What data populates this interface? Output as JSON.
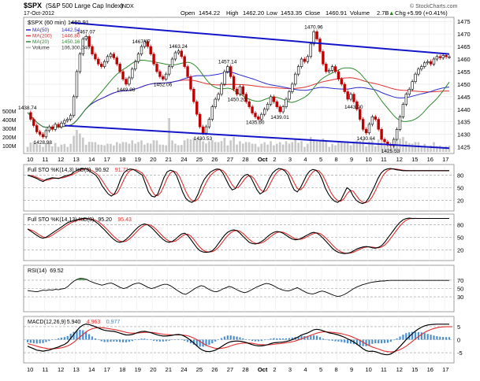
{
  "header": {
    "symbol": "$SPX",
    "company": "(S&P 500 Large Cap Index)",
    "exchange": "INDX",
    "date": "17-Oct-2012",
    "open_label": "Open",
    "open": "1454.22",
    "high_label": "High",
    "high": "1462.20",
    "low_label": "Low",
    "low": "1453.35",
    "close_label": "Close",
    "close": "1460.91",
    "volume_label": "Volume",
    "volume": "2.7B",
    "chg_label": "Chg",
    "chg": "+5.99 (+0.41%)",
    "chg_arrow": "▲",
    "credit": "© StockCharts.com"
  },
  "chart_data": [
    {
      "type": "line",
      "title": "$SPX (60 min) 1460.91",
      "legend": [
        {
          "label": "MA(50)",
          "value": "1442.54",
          "color": "#2b2bd0"
        },
        {
          "label": "MA(200)",
          "value": "1446.80",
          "color": "#e03030"
        },
        {
          "label": "MA(20)",
          "value": "1450.16",
          "color": "#2e8b2e"
        },
        {
          "label": "Volume",
          "value": "106,300,040",
          "color": "#bbbbbb"
        }
      ],
      "ylim": [
        1423,
        1476
      ],
      "yticks": [
        1425,
        1430,
        1435,
        1440,
        1445,
        1450,
        1455,
        1460,
        1465,
        1470,
        1475
      ],
      "volume_ticks": [
        "500M",
        "400M",
        "300M",
        "200M",
        "100M"
      ],
      "x": [
        0,
        1,
        2,
        3,
        4,
        5,
        6,
        7,
        8,
        9,
        10,
        11,
        12,
        13,
        14,
        15,
        16,
        17,
        18,
        19,
        20,
        21,
        22,
        23,
        24,
        25,
        26,
        27,
        28,
        29,
        30,
        31,
        32,
        33,
        34,
        35,
        36,
        37,
        38,
        39,
        40,
        41,
        42,
        43,
        44,
        45,
        46,
        47,
        48,
        49,
        50,
        51,
        52,
        53,
        54,
        55,
        56,
        57,
        58,
        59,
        60,
        61,
        62,
        63,
        64,
        65,
        66,
        67,
        68,
        69,
        70,
        71,
        72,
        73,
        74,
        75,
        76,
        77,
        78,
        79,
        80,
        81,
        82,
        83,
        84,
        85,
        86,
        87,
        88,
        89,
        90,
        91,
        92,
        93,
        94,
        95,
        96,
        97,
        98,
        99,
        100,
        101,
        102,
        103,
        104,
        105,
        106,
        107,
        108,
        109,
        110,
        111,
        112,
        113,
        114,
        115,
        116,
        117,
        118,
        119,
        120,
        121,
        122,
        123,
        124,
        125,
        126,
        127,
        128,
        129,
        130,
        131,
        132,
        133,
        134,
        135,
        136,
        137
      ],
      "price": [
        1438.7,
        1436.0,
        1433.5,
        1431.0,
        1430.0,
        1429.0,
        1431.5,
        1433.0,
        1432.0,
        1434.0,
        1433.0,
        1434.5,
        1435.5,
        1436.0,
        1437.5,
        1445.0,
        1455.0,
        1462.0,
        1468.0,
        1469.0,
        1465.0,
        1462.0,
        1460.0,
        1458.0,
        1457.0,
        1459.0,
        1461.0,
        1462.0,
        1460.5,
        1458.0,
        1455.0,
        1452.0,
        1450.0,
        1452.5,
        1456.0,
        1459.0,
        1462.0,
        1465.0,
        1467.0,
        1465.0,
        1462.0,
        1458.0,
        1455.0,
        1453.0,
        1452.0,
        1454.0,
        1457.0,
        1460.0,
        1462.5,
        1463.2,
        1461.0,
        1457.0,
        1453.0,
        1448.0,
        1443.0,
        1438.0,
        1433.0,
        1430.5,
        1433.0,
        1436.0,
        1441.0,
        1444.0,
        1446.0,
        1450.0,
        1455.0,
        1457.0,
        1453.0,
        1448.0,
        1446.0,
        1449.0,
        1446.0,
        1443.0,
        1441.0,
        1438.5,
        1437.0,
        1436.0,
        1438.0,
        1440.0,
        1442.0,
        1445.0,
        1443.0,
        1441.0,
        1439.0,
        1441.0,
        1444.0,
        1447.0,
        1450.0,
        1454.0,
        1457.0,
        1460.0,
        1459.0,
        1461.0,
        1466.0,
        1470.9,
        1468.0,
        1463.0,
        1458.0,
        1455.0,
        1455.5,
        1457.0,
        1455.0,
        1452.0,
        1450.0,
        1447.0,
        1444.0,
        1446.0,
        1443.0,
        1440.0,
        1436.0,
        1432.0,
        1430.6,
        1434.0,
        1437.0,
        1436.0,
        1432.0,
        1428.0,
        1427.0,
        1426.0,
        1425.5,
        1428.0,
        1432.0,
        1437.0,
        1442.0,
        1446.0,
        1448.0,
        1451.0,
        1454.0,
        1456.0,
        1457.0,
        1458.5,
        1459.0,
        1458.0,
        1460.0,
        1461.0,
        1460.5,
        1461.5,
        1460.9,
        1460.9
      ],
      "annotations": [
        {
          "i": 0,
          "text": "1438.74"
        },
        {
          "i": 5,
          "text": "1428.98"
        },
        {
          "i": 19,
          "text": "1467.07"
        },
        {
          "i": 32,
          "text": "1449.98"
        },
        {
          "i": 37,
          "text": "1467.07"
        },
        {
          "i": 44,
          "text": "1452.06"
        },
        {
          "i": 49,
          "text": "1463.24"
        },
        {
          "i": 57,
          "text": "1430.53"
        },
        {
          "i": 65,
          "text": "1457.14"
        },
        {
          "i": 68,
          "text": "1450.20"
        },
        {
          "i": 74,
          "text": "1435.60"
        },
        {
          "i": 82,
          "text": "1439.01"
        },
        {
          "i": 93,
          "text": "1470.96"
        },
        {
          "i": 106,
          "text": "1443.90"
        },
        {
          "i": 110,
          "text": "1430.64"
        },
        {
          "i": 118,
          "text": "1425.53"
        }
      ],
      "x_tick_labels": [
        "10",
        "11",
        "12",
        "13",
        "14",
        "17",
        "18",
        "19",
        "20",
        "21",
        "24",
        "25",
        "26",
        "27",
        "28",
        "Oct",
        "2",
        "3",
        "4",
        "5",
        "8",
        "9",
        "10",
        "11",
        "12",
        "15",
        "16",
        "17"
      ],
      "trendline_upper": [
        [
          14,
          1474.5
        ],
        [
          137,
          1462.0
        ]
      ],
      "trendline_lower": [
        [
          12,
          1433.5
        ],
        [
          137,
          1424.5
        ]
      ]
    },
    {
      "type": "line",
      "title": "Full STO %K(14,3) %D(3) 90.92, 91.71",
      "legend": [
        {
          "label": "Full STO %K(14,3) %D(3)",
          "value": "90.92",
          "color": "#000000"
        },
        {
          "label": "",
          "value": "91.71",
          "color": "#e03030"
        }
      ],
      "ylim": [
        0,
        100
      ],
      "yticks": [
        20,
        50,
        80
      ],
      "k": [
        80,
        78,
        75,
        72,
        68,
        65,
        70,
        72,
        74,
        73,
        72,
        75,
        78,
        80,
        82,
        88,
        92,
        95,
        96,
        95,
        90,
        85,
        80,
        70,
        55,
        45,
        35,
        30,
        35,
        50,
        70,
        85,
        92,
        95,
        94,
        90,
        85,
        80,
        60,
        40,
        30,
        28,
        35,
        55,
        75,
        88,
        92,
        90,
        80,
        60,
        40,
        25,
        18,
        15,
        20,
        35,
        55,
        70,
        80,
        88,
        92,
        95,
        94,
        85,
        70,
        55,
        45,
        48,
        60,
        72,
        80,
        82,
        75,
        60,
        45,
        35,
        40,
        55,
        72,
        85,
        92,
        96,
        95,
        90,
        80,
        60,
        45,
        40,
        50,
        65,
        80,
        90,
        94,
        92,
        85,
        70,
        50,
        35,
        25,
        18,
        15,
        20,
        35,
        50,
        45,
        30,
        20,
        15,
        12,
        15,
        25,
        40,
        55,
        72,
        85,
        92,
        95,
        96,
        95,
        93,
        92,
        91,
        90.9,
        90.9,
        90.9,
        90.9,
        90.9,
        90.9,
        90.9,
        90.9,
        90.9,
        90.9,
        90.9,
        90.9,
        90.9,
        90.9,
        90.9
      ]
    },
    {
      "type": "line",
      "title": "Full STO %K(14,13) %D(3) 95.20, 95.43",
      "legend": [
        {
          "label": "Full STO %K(14,13) %D(3)",
          "value": "95.20",
          "color": "#000000"
        },
        {
          "label": "",
          "value": "95.43",
          "color": "#e03030"
        }
      ],
      "ylim": [
        0,
        100
      ],
      "yticks": [
        20,
        50,
        80
      ],
      "k": [
        70,
        65,
        60,
        55,
        50,
        48,
        50,
        55,
        60,
        65,
        70,
        75,
        80,
        85,
        88,
        90,
        92,
        94,
        95,
        95,
        94,
        92,
        88,
        82,
        75,
        68,
        60,
        52,
        45,
        40,
        38,
        40,
        45,
        52,
        60,
        68,
        75,
        80,
        82,
        80,
        75,
        68,
        60,
        52,
        45,
        40,
        38,
        40,
        45,
        52,
        58,
        60,
        55,
        45,
        35,
        25,
        18,
        15,
        14,
        15,
        18,
        25,
        35,
        45,
        55,
        62,
        66,
        68,
        66,
        60,
        52,
        45,
        38,
        35,
        34,
        36,
        40,
        45,
        52,
        58,
        62,
        64,
        63,
        60,
        55,
        50,
        46,
        44,
        45,
        48,
        52,
        56,
        60,
        62,
        60,
        55,
        48,
        40,
        32,
        24,
        18,
        14,
        12,
        11,
        12,
        14,
        18,
        22,
        25,
        27,
        28,
        27,
        25,
        24,
        26,
        30,
        38,
        48,
        58,
        68,
        78,
        86,
        92,
        95,
        96,
        95,
        95.2,
        95.2,
        95.2,
        95.2,
        95.2,
        95.2,
        95.2,
        95.2,
        95.2,
        95.2,
        95.2,
        95.2
      ]
    },
    {
      "type": "line",
      "title": "RSI(14) 69.52",
      "legend": [
        {
          "label": "RSI(14)",
          "value": "69.52",
          "color": "#000000"
        }
      ],
      "ylim": [
        0,
        100
      ],
      "yticks": [
        30,
        50,
        70
      ],
      "values": [
        45,
        44,
        43,
        42,
        44,
        46,
        45,
        47,
        46,
        48,
        47,
        49,
        50,
        55,
        62,
        68,
        72,
        75,
        74,
        72,
        68,
        65,
        62,
        60,
        58,
        60,
        62,
        63,
        60,
        56,
        52,
        50,
        52,
        56,
        60,
        62,
        63,
        60,
        56,
        52,
        50,
        52,
        55,
        58,
        60,
        60,
        57,
        52,
        47,
        42,
        38,
        36,
        40,
        45,
        50,
        54,
        57,
        55,
        50,
        46,
        43,
        42,
        45,
        49,
        52,
        55,
        53,
        49,
        45,
        42,
        40,
        42,
        46,
        50,
        54,
        57,
        60,
        62,
        61,
        58,
        54,
        50,
        47,
        45,
        44,
        46,
        49,
        52,
        48,
        44,
        40,
        38,
        37,
        39,
        42,
        44,
        42,
        39,
        36,
        33,
        31,
        32,
        35,
        39,
        44,
        49,
        53,
        56,
        59,
        61,
        63,
        65,
        66,
        67,
        68,
        68,
        69,
        69.5,
        69.5,
        69.5,
        69.5,
        69.5,
        69.5,
        69.5,
        69.5,
        69.5,
        69.5,
        69.5,
        69.5,
        69.5,
        69.5,
        69.5,
        69.5,
        69.5,
        69.5,
        69.5,
        69.5
      ]
    },
    {
      "type": "line",
      "title": "MACD(12,26,9) 5.940, 4.963, 0.977",
      "legend": [
        {
          "label": "MACD(12,26,9)",
          "value": "5.940",
          "color": "#000000"
        },
        {
          "label": "",
          "value": "4.963",
          "color": "#e03030"
        },
        {
          "label": "",
          "value": "0.977",
          "color": "#3b86c8"
        }
      ],
      "ylim": [
        -8,
        8
      ],
      "yticks": [
        -5,
        0,
        5
      ],
      "macd": [
        -2.5,
        -3,
        -3.5,
        -4,
        -4.2,
        -4.4,
        -4.2,
        -4,
        -3.6,
        -3.2,
        -2.8,
        -2.3,
        -1.8,
        -1,
        0.5,
        2,
        3.5,
        4.8,
        5.6,
        6,
        5.8,
        5.4,
        5,
        4.5,
        4,
        3.6,
        3.4,
        3.3,
        3.2,
        2.9,
        2.5,
        2.1,
        1.8,
        1.8,
        2,
        2.4,
        2.8,
        3.1,
        3.2,
        3,
        2.7,
        2.3,
        1.9,
        1.6,
        1.4,
        1.4,
        1.5,
        1.7,
        1.9,
        2,
        1.8,
        1.3,
        0.6,
        -0.3,
        -1.3,
        -2.4,
        -3.4,
        -4.1,
        -4.5,
        -4.6,
        -4.4,
        -4,
        -3.4,
        -2.7,
        -1.9,
        -1.2,
        -0.8,
        -0.6,
        -0.5,
        -0.6,
        -0.8,
        -1.1,
        -1.5,
        -1.9,
        -2.2,
        -2.4,
        -2.4,
        -2.2,
        -1.9,
        -1.5,
        -1.2,
        -1.1,
        -1,
        -0.9,
        -0.7,
        -0.4,
        0,
        0.5,
        1.1,
        1.8,
        2.2,
        2.6,
        3.2,
        3.8,
        4,
        3.8,
        3.4,
        3,
        2.6,
        2.4,
        2.1,
        1.8,
        1.4,
        0.9,
        0.3,
        -0.2,
        -0.9,
        -1.7,
        -2.6,
        -3.5,
        -4.2,
        -4.5,
        -4.4,
        -4.6,
        -5,
        -5.4,
        -5.7,
        -5.8,
        -5.5,
        -4.8,
        -3.8,
        -2.6,
        -1.3,
        0,
        1.2,
        2.3,
        3.3,
        4.1,
        4.8,
        5.3,
        5.6,
        5.8,
        5.9,
        5.94,
        5.94,
        5.94,
        5.94,
        5.94
      ],
      "signal": [
        -1.5,
        -1.8,
        -2.1,
        -2.5,
        -2.8,
        -3.1,
        -3.3,
        -3.5,
        -3.5,
        -3.4,
        -3.3,
        -3.1,
        -2.8,
        -2.4,
        -1.8,
        -1,
        0,
        1,
        2,
        3,
        3.7,
        4.2,
        4.5,
        4.6,
        4.6,
        4.5,
        4.3,
        4.1,
        3.9,
        3.7,
        3.4,
        3.1,
        2.8,
        2.6,
        2.5,
        2.5,
        2.6,
        2.7,
        2.8,
        2.8,
        2.8,
        2.7,
        2.5,
        2.3,
        2.1,
        2,
        1.9,
        1.8,
        1.8,
        1.8,
        1.8,
        1.7,
        1.5,
        1.1,
        0.6,
        0,
        -0.7,
        -1.4,
        -2.1,
        -2.6,
        -3,
        -3.3,
        -3.4,
        -3.3,
        -3.1,
        -2.8,
        -2.4,
        -2,
        -1.7,
        -1.5,
        -1.3,
        -1.3,
        -1.3,
        -1.4,
        -1.6,
        -1.8,
        -1.9,
        -2,
        -2,
        -1.9,
        -1.8,
        -1.6,
        -1.5,
        -1.4,
        -1.2,
        -1,
        -0.8,
        -0.5,
        -0.1,
        0.3,
        0.8,
        1.2,
        1.7,
        2.1,
        2.5,
        2.8,
        3,
        3,
        2.9,
        2.8,
        2.7,
        2.5,
        2.3,
        2,
        1.7,
        1.3,
        0.8,
        0.3,
        -0.3,
        -1,
        -1.7,
        -2.3,
        -2.8,
        -3.2,
        -3.6,
        -4,
        -4.4,
        -4.6,
        -4.7,
        -4.6,
        -4.3,
        -3.8,
        -3.2,
        -2.5,
        -1.6,
        -0.7,
        0.3,
        1.2,
        2,
        2.8,
        3.4,
        3.9,
        4.3,
        4.6,
        4.8,
        4.9,
        4.96,
        4.96,
        4.96
      ]
    }
  ]
}
